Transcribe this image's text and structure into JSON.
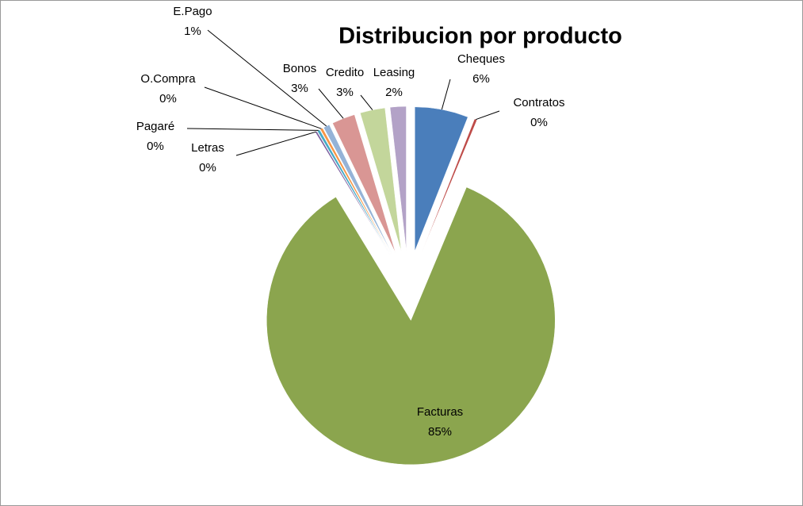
{
  "chart_data": {
    "type": "pie",
    "title": "Distribucion por producto",
    "categories": [
      "Cheques",
      "Contratos",
      "Facturas",
      "Letras",
      "Pagaré",
      "O.Compra",
      "E.Pago",
      "Bonos",
      "Credito",
      "Leasing"
    ],
    "values": [
      6,
      0.3,
      85,
      0.2,
      0.3,
      0.3,
      0.7,
      2.6,
      2.8,
      1.8
    ],
    "value_labels": [
      "6%",
      "0%",
      "85%",
      "0%",
      "0%",
      "0%",
      "1%",
      "3%",
      "3%",
      "2%"
    ],
    "colors": [
      "#4a7ebb",
      "#be4b48",
      "#8ba54e",
      "#7d60a0",
      "#46aac5",
      "#f79646",
      "#95b3d7",
      "#d99694",
      "#c3d69b",
      "#b3a2c7"
    ]
  }
}
